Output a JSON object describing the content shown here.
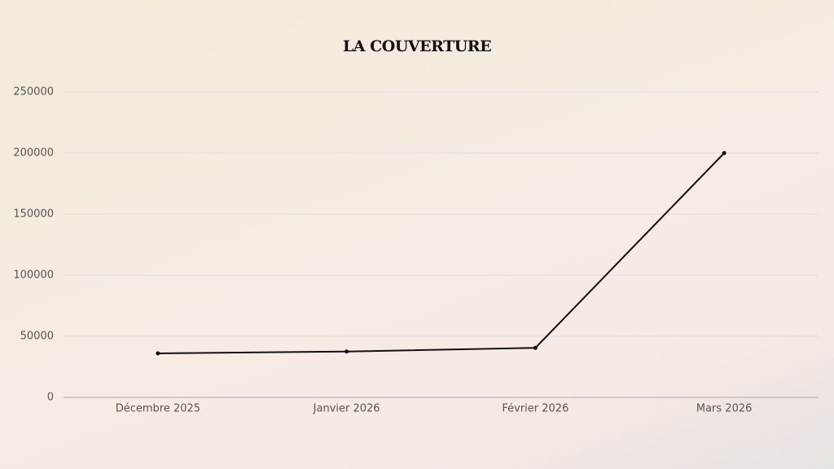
{
  "chart_data": {
    "type": "line",
    "title": "LA COUVERTURE",
    "categories": [
      "Décembre 2025",
      "Janvier 2026",
      "Février 2026",
      "Mars 2026"
    ],
    "series": [
      {
        "color": "#111111",
        "values": [
          36000,
          37500,
          40500,
          200000
        ]
      }
    ],
    "ylim": [
      0,
      250000
    ],
    "yticks": [
      0,
      50000,
      100000,
      150000,
      200000,
      250000
    ],
    "grid": true
  }
}
